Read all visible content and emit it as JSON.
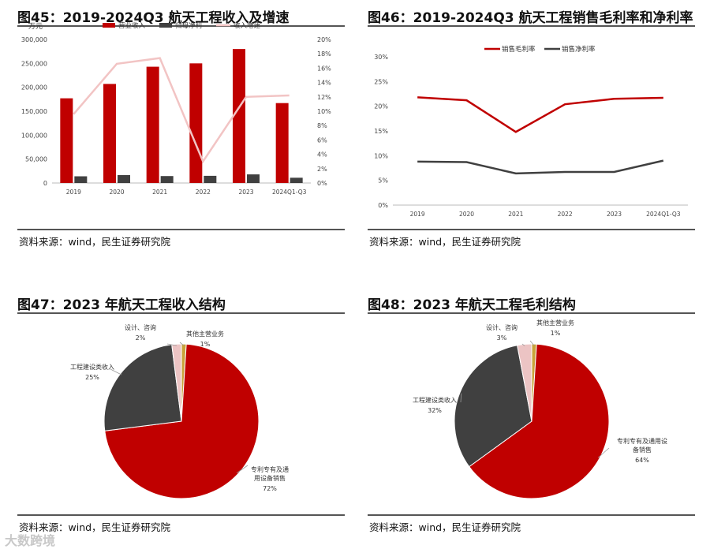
{
  "panels": [
    {
      "title": "图45：2019-2024Q3 航天工程收入及增速",
      "source": "资料来源：wind，民生证券研究院"
    },
    {
      "title": "图46：2019-2024Q3 航天工程销售毛利率和净利率",
      "source": "资料来源：wind，民生证券研究院"
    },
    {
      "title": "图47：2023 年航天工程收入结构",
      "source": "资料来源：wind，民生证券研究院"
    },
    {
      "title": "图48：2023 年航天工程毛利结构",
      "source": "资料来源：wind，民生证券研究院"
    }
  ],
  "watermark": "大数跨境",
  "chart_data": [
    {
      "type": "bar",
      "categories": [
        "2019",
        "2020",
        "2021",
        "2022",
        "2023",
        "2024Q1-Q3"
      ],
      "y_unit": "万元",
      "ylim": [
        0,
        300000
      ],
      "y_ticks": [
        0,
        50000,
        100000,
        150000,
        200000,
        250000,
        300000
      ],
      "y_tick_labels": [
        "0",
        "50,000",
        "100,000",
        "150,000",
        "200,000",
        "250,000",
        "300,000"
      ],
      "y2lim": [
        0,
        20
      ],
      "y2_ticks": [
        0,
        2,
        4,
        6,
        8,
        10,
        12,
        14,
        16,
        18,
        20
      ],
      "y2_tick_labels": [
        "0%",
        "2%",
        "4%",
        "6%",
        "8%",
        "10%",
        "12%",
        "14%",
        "16%",
        "18%",
        "20%"
      ],
      "legend_position": "top",
      "series": [
        {
          "name": "营业收入",
          "type": "bar",
          "color": "#c00000",
          "values": [
            177000,
            207000,
            243000,
            250000,
            280000,
            167000
          ]
        },
        {
          "name": "归母净利",
          "type": "bar",
          "color": "#404040",
          "values": [
            14000,
            16500,
            14500,
            15000,
            18000,
            11000
          ]
        },
        {
          "name": "收入增速",
          "type": "line",
          "axis": "right",
          "unit": "%",
          "color": "#f2c4c4",
          "values": [
            9.6,
            16.6,
            17.4,
            3.0,
            12.0,
            12.2
          ]
        }
      ]
    },
    {
      "type": "line",
      "categories": [
        "2019",
        "2020",
        "2021",
        "2022",
        "2023",
        "2024Q1-Q3"
      ],
      "ylim": [
        0,
        30
      ],
      "y_ticks": [
        0,
        5,
        10,
        15,
        20,
        25,
        30
      ],
      "y_tick_labels": [
        "0%",
        "5%",
        "10%",
        "15%",
        "20%",
        "25%",
        "30%"
      ],
      "legend_position": "top",
      "series": [
        {
          "name": "销售毛利率",
          "unit": "%",
          "color": "#c00000",
          "values": [
            21.8,
            21.2,
            14.8,
            20.4,
            21.5,
            21.7
          ]
        },
        {
          "name": "销售净利率",
          "unit": "%",
          "color": "#404040",
          "values": [
            8.8,
            8.7,
            6.4,
            6.7,
            6.7,
            9.0
          ]
        }
      ]
    },
    {
      "type": "pie",
      "slices": [
        {
          "label": "专利专有及通用设备销售",
          "pct_label": "72%",
          "value": 72,
          "color": "#c00000"
        },
        {
          "label": "工程建设类收入",
          "pct_label": "25%",
          "value": 25,
          "color": "#404040"
        },
        {
          "label": "设计、咨询",
          "pct_label": "2%",
          "value": 2,
          "color": "#ecc4c4"
        },
        {
          "label": "其他主营业务",
          "pct_label": "1%",
          "value": 1,
          "color": "#c9a33a"
        }
      ]
    },
    {
      "type": "pie",
      "slices": [
        {
          "label": "专利专有及通用设备销售",
          "pct_label": "64%",
          "value": 64,
          "color": "#c00000"
        },
        {
          "label": "工程建设类收入",
          "pct_label": "32%",
          "value": 32,
          "color": "#404040"
        },
        {
          "label": "设计、咨询",
          "pct_label": "3%",
          "value": 3,
          "color": "#ecc4c4"
        },
        {
          "label": "其他主营业务",
          "pct_label": "1%",
          "value": 1,
          "color": "#c9a33a"
        }
      ]
    }
  ]
}
